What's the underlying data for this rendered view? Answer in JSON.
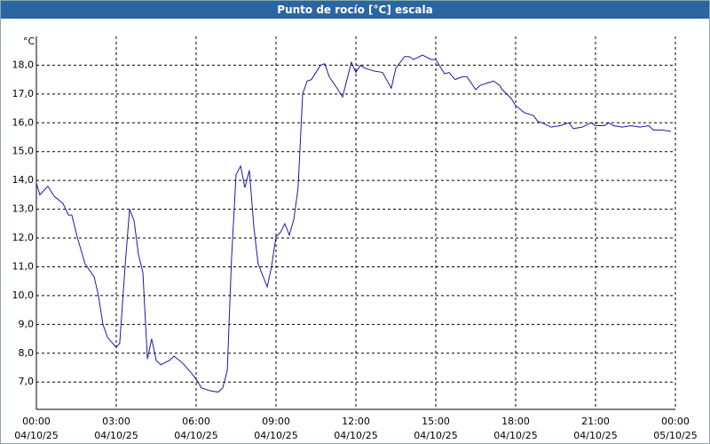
{
  "chart_data": {
    "type": "line",
    "title": "Punto de rocío [°C] escala",
    "y_unit": "°C",
    "x": [
      0,
      0.13,
      0.43,
      0.67,
      1,
      1.2,
      1.33,
      1.53,
      1.83,
      2.17,
      2.33,
      2.5,
      2.67,
      3,
      3.13,
      3.33,
      3.5,
      3.67,
      3.83,
      4,
      4.17,
      4.33,
      4.5,
      4.67,
      5,
      5.17,
      5.5,
      5.83,
      6,
      6.2,
      6.5,
      6.83,
      7,
      7.17,
      7.33,
      7.5,
      7.67,
      7.83,
      8,
      8.17,
      8.33,
      8.67,
      8.83,
      9,
      9.17,
      9.33,
      9.5,
      9.67,
      9.83,
      10,
      10.17,
      10.33,
      10.67,
      10.83,
      11,
      11.33,
      11.5,
      11.83,
      12,
      12.17,
      12.33,
      12.67,
      13,
      13.33,
      13.5,
      13.83,
      14,
      14.17,
      14.5,
      14.83,
      15,
      15.33,
      15.5,
      15.73,
      16,
      16.17,
      16.5,
      16.67,
      17,
      17.17,
      17.4,
      17.5,
      17.83,
      18,
      18.33,
      18.67,
      18.83,
      19,
      19.33,
      19.67,
      20,
      20.17,
      20.5,
      20.83,
      21,
      21.33,
      21.5,
      21.67,
      22,
      22.33,
      22.67,
      23,
      23.17,
      23.5,
      23.83
    ],
    "series": [
      {
        "name": "Punto de rocío",
        "color": "#1a1aa6",
        "values": [
          13.9,
          13.5,
          13.8,
          13.45,
          13.2,
          12.8,
          12.8,
          12.05,
          11.1,
          10.65,
          10.0,
          9.0,
          8.55,
          8.2,
          8.35,
          11.0,
          13.0,
          12.6,
          11.45,
          10.8,
          7.8,
          8.5,
          7.75,
          7.6,
          7.75,
          7.9,
          7.65,
          7.3,
          7.1,
          6.8,
          6.7,
          6.65,
          6.8,
          7.4,
          11.3,
          14.2,
          14.5,
          13.75,
          14.35,
          12.35,
          11.1,
          10.3,
          11.0,
          12.05,
          12.2,
          12.5,
          12.1,
          12.65,
          13.75,
          17.0,
          17.45,
          17.5,
          18.0,
          18.05,
          17.6,
          17.15,
          16.9,
          18.1,
          17.75,
          18.0,
          17.9,
          17.8,
          17.75,
          17.2,
          17.9,
          18.3,
          18.3,
          18.2,
          18.35,
          18.2,
          18.2,
          17.7,
          17.75,
          17.5,
          17.6,
          17.6,
          17.15,
          17.3,
          17.4,
          17.45,
          17.3,
          17.15,
          16.85,
          16.6,
          16.35,
          16.25,
          16.05,
          16.0,
          15.85,
          15.9,
          16.0,
          15.8,
          15.85,
          16.0,
          15.9,
          15.9,
          16.0,
          15.9,
          15.85,
          15.9,
          15.85,
          15.9,
          15.75,
          15.75,
          15.7
        ]
      }
    ],
    "xlim": [
      0,
      24
    ],
    "xticks": [
      {
        "value": 0,
        "label": "00:00 04/10/25"
      },
      {
        "value": 3,
        "label": "03:00 04/10/25"
      },
      {
        "value": 6,
        "label": "06:00 04/10/25"
      },
      {
        "value": 9,
        "label": "09:00 04/10/25"
      },
      {
        "value": 12,
        "label": "12:00 04/10/25"
      },
      {
        "value": 15,
        "label": "15:00 04/10/25"
      },
      {
        "value": 18,
        "label": "18:00 04/10/25"
      },
      {
        "value": 21,
        "label": "21:00 04/10/25"
      },
      {
        "value": 24,
        "label": "00:00 05/10/25"
      }
    ],
    "ylim": [
      6.05,
      19.0
    ],
    "yticks": [
      {
        "value": 7,
        "label": "7,0"
      },
      {
        "value": 8,
        "label": "8,0"
      },
      {
        "value": 9,
        "label": "9,0"
      },
      {
        "value": 10,
        "label": "10,0"
      },
      {
        "value": 11,
        "label": "11,0"
      },
      {
        "value": 12,
        "label": "12,0"
      },
      {
        "value": 13,
        "label": "13,0"
      },
      {
        "value": 14,
        "label": "14,0"
      },
      {
        "value": 15,
        "label": "15,0"
      },
      {
        "value": 16,
        "label": "16,0"
      },
      {
        "value": 17,
        "label": "17,0"
      },
      {
        "value": 18,
        "label": "18,0"
      }
    ],
    "grid": true
  }
}
